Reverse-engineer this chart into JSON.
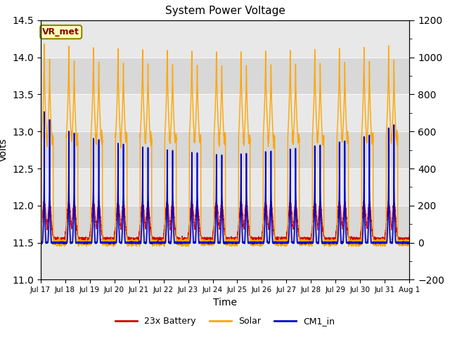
{
  "title": "System Power Voltage",
  "xlabel": "Time",
  "ylabel_left": "Volts",
  "ylabel_right": "",
  "ylim_left": [
    11.0,
    14.5
  ],
  "ylim_right": [
    -200,
    1200
  ],
  "yticks_left": [
    11.0,
    11.5,
    12.0,
    12.5,
    13.0,
    13.5,
    14.0,
    14.5
  ],
  "yticks_right": [
    -200,
    0,
    200,
    400,
    600,
    800,
    1000,
    1200
  ],
  "xtick_labels": [
    "Jul 17",
    "Jul 18",
    "Jul 19",
    "Jul 20",
    "Jul 21",
    "Jul 22",
    "Jul 23",
    "Jul 24",
    "Jul 25",
    "Jul 26",
    "Jul 27",
    "Jul 28",
    "Jul 29",
    "Jul 30",
    "Jul 31",
    "Aug 1"
  ],
  "color_battery": "#cc0000",
  "color_solar": "#ffa500",
  "color_cm1": "#0000cc",
  "annotation_text": "VR_met",
  "annotation_box_facecolor": "#ffffbb",
  "annotation_box_edgecolor": "#888800",
  "legend_labels": [
    "23x Battery",
    "Solar",
    "CM1_in"
  ],
  "band_colors": [
    "#e8e8e8",
    "#d8d8d8"
  ],
  "n_days": 15
}
